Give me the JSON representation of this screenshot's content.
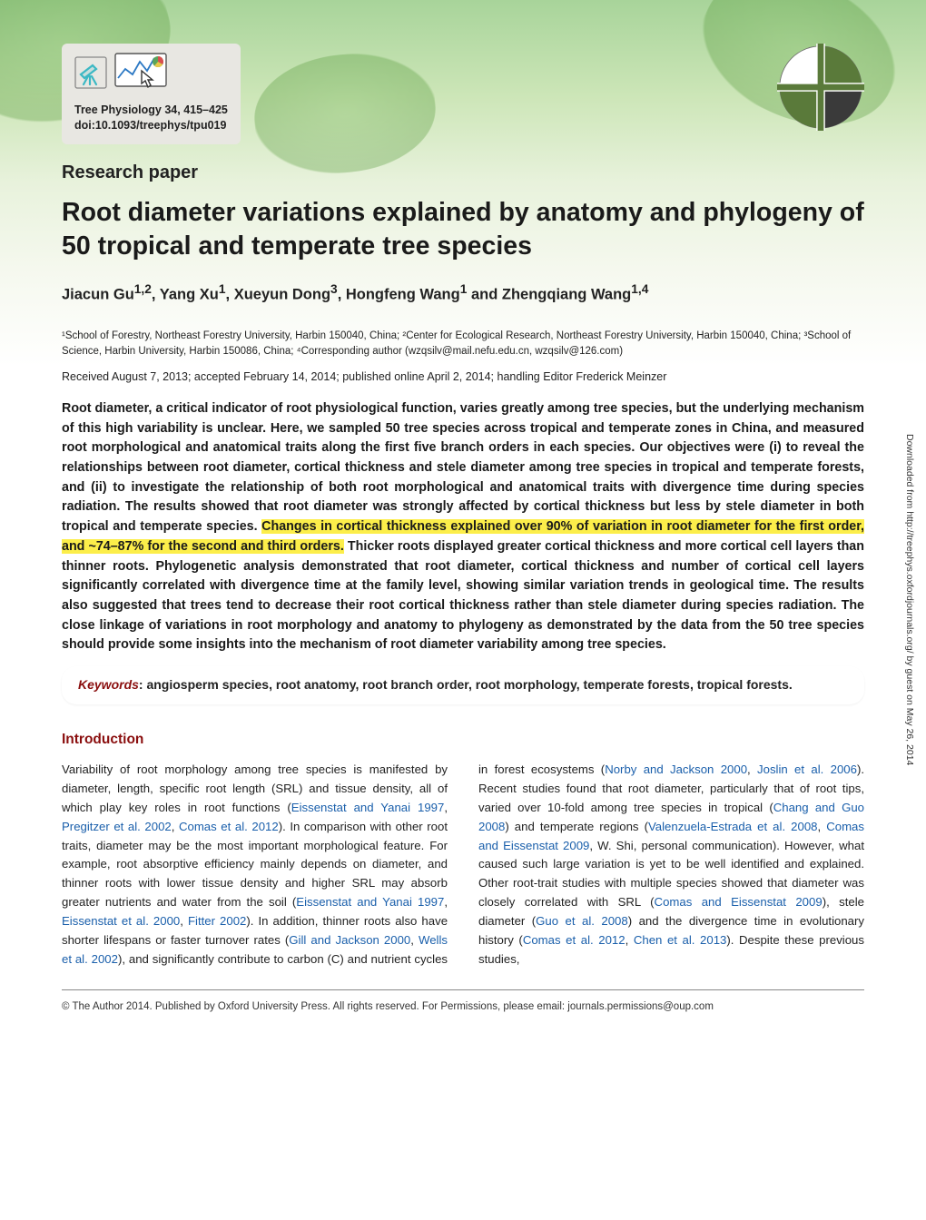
{
  "reference": {
    "journal": "Tree Physiology 34, 415–425",
    "doi": "doi:10.1093/treephys/tpu019"
  },
  "section_label": "Research paper",
  "title": "Root diameter variations explained by anatomy and phylogeny of 50 tropical and temperate tree species",
  "authors_html": "Jiacun Gu<sup>1,2</sup>, Yang Xu<sup>1</sup>, Xueyun Dong<sup>3</sup>, Hongfeng Wang<sup>1</sup> and Zhengqiang Wang<sup>1,4</sup>",
  "affiliations": "¹School of Forestry, Northeast Forestry University, Harbin 150040, China; ²Center for Ecological Research, Northeast Forestry University, Harbin 150040, China; ³School of Science, Harbin University, Harbin 150086, China; ⁴Corresponding author (wzqsilv@mail.nefu.edu.cn, wzqsilv@126.com)",
  "received": "Received August 7, 2013; accepted February 14, 2014; published online April 2, 2014; handling Editor Frederick Meinzer",
  "abstract": {
    "pre": "Root diameter, a critical indicator of root physiological function, varies greatly among tree species, but the underlying mechanism of this high variability is unclear. Here, we sampled 50 tree species across tropical and temperate zones in China, and measured root morphological and anatomical traits along the first five branch orders in each species. Our objectives were (i) to reveal the relationships between root diameter, cortical thickness and stele diameter among tree species in tropical and temperate forests, and (ii) to investigate the relationship of both root morphological and anatomical traits with divergence time during species radiation. The results showed that root diameter was strongly affected by cortical thickness but less by stele diameter in both tropical and temperate species. ",
    "highlight": "Changes in cortical thickness explained over 90% of variation in root diameter for the first order, and ~74–87% for the second and third orders.",
    "post": " Thicker roots displayed greater cortical thickness and more cortical cell layers than thinner roots. Phylogenetic analysis demonstrated that root diameter, cortical thickness and number of cortical cell layers significantly correlated with divergence time at the family level, showing similar variation trends in geological time. The results also suggested that trees tend to decrease their root cortical thickness rather than stele diameter during species radiation. The close linkage of variations in root morphology and anatomy to phylogeny as demonstrated by the data from the 50 tree species should provide some insights into the mechanism of root diameter variability among tree species."
  },
  "keywords": {
    "label": "Keywords",
    "text": ": angiosperm species, root anatomy, root branch order, root morphology, temperate forests, tropical forests."
  },
  "introduction_heading": "Introduction",
  "body_html": "Variability of root morphology among tree species is manifested by diameter, length, specific root length (SRL) and tissue density, all of which play key roles in root functions (<span class='ref'>Eissenstat and Yanai 1997</span>, <span class='ref'>Pregitzer et al. 2002</span>, <span class='ref'>Comas et al. 2012</span>). In comparison with other root traits, diameter may be the most important morphological feature. For example, root absorptive efficiency mainly depends on diameter, and thinner roots with lower tissue density and higher SRL may absorb greater nutrients and water from the soil (<span class='ref'>Eissenstat and Yanai 1997</span>, <span class='ref'>Eissenstat et al. 2000</span>, <span class='ref'>Fitter 2002</span>). In addition, thinner roots also have shorter lifespans or faster turnover rates (<span class='ref'>Gill and Jackson 2000</span>, <span class='ref'>Wells et al. 2002</span>), and significantly contribute to carbon (C) and nutrient cycles in forest ecosystems (<span class='ref'>Norby and Jackson 2000</span>, <span class='ref'>Joslin et al. 2006</span>). Recent studies found that root diameter, particularly that of root tips, varied over 10-fold among tree species in tropical (<span class='ref'>Chang and Guo 2008</span>) and temperate regions (<span class='ref'>Valenzuela-Estrada et al. 2008</span>, <span class='ref'>Comas and Eissenstat 2009</span>, W. Shi, personal communication). However, what caused such large variation is yet to be well identified and explained. Other root-trait studies with multiple species showed that diameter was closely correlated with SRL (<span class='ref'>Comas and Eissenstat 2009</span>), stele diameter (<span class='ref'>Guo et al. 2008</span>) and the divergence time in evolutionary history (<span class='ref'>Comas et al. 2012</span>, <span class='ref'>Chen et al. 2013</span>). Despite these previous studies,",
  "copyright": "© The Author 2014. Published by Oxford University Press. All rights reserved. For Permissions, please email: journals.permissions@oup.com",
  "side_note": "Downloaded from http://treephys.oxfordjournals.org/ by guest on May 26, 2014",
  "logo_colors": {
    "top_left": "#ffffff",
    "top_right": "#5a7a3a",
    "bottom_left": "#5a7a3a",
    "bottom_right": "#3a3a3a",
    "ring": "#6b6b6b"
  },
  "icon_colors": {
    "telescope": "#3bb8c4",
    "chart_border": "#555",
    "chart_line": "#2b78c4",
    "chart_pie1": "#d94e4e",
    "chart_pie2": "#e6c84a",
    "chart_pie3": "#5aa35a",
    "cursor": "#333"
  }
}
